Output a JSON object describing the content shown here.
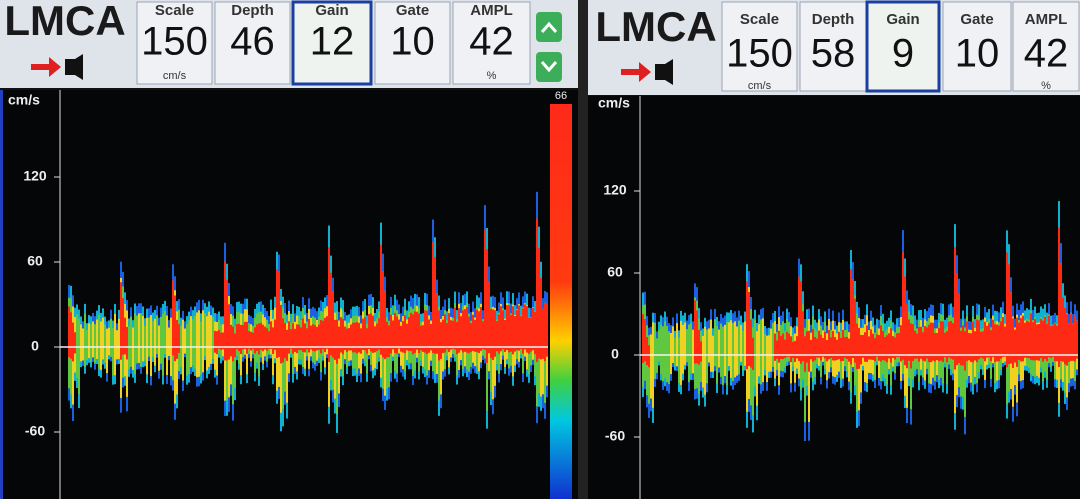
{
  "panels": [
    {
      "vessel": "LMCA",
      "params": [
        {
          "label": "Scale",
          "value": "150",
          "unit": "cm/s"
        },
        {
          "label": "Depth",
          "value": "46"
        },
        {
          "label": "Gain",
          "value": "12"
        },
        {
          "label": "Gate",
          "value": "10"
        },
        {
          "label": "AMPL",
          "value": "42",
          "unit": "%"
        }
      ],
      "axis_unit": "cm/s",
      "y_ticks": [
        120,
        60,
        0,
        -60
      ],
      "colorbar_max": "66"
    },
    {
      "vessel": "LMCA",
      "params": [
        {
          "label": "Scale",
          "value": "150",
          "unit": "cm/s"
        },
        {
          "label": "Depth",
          "value": "58"
        },
        {
          "label": "Gain",
          "value": "9"
        },
        {
          "label": "Gate",
          "value": "10"
        },
        {
          "label": "AMPL",
          "value": "42",
          "unit": "%"
        }
      ],
      "axis_unit": "cm/s",
      "y_ticks": [
        120,
        60,
        0,
        -60
      ]
    }
  ]
}
